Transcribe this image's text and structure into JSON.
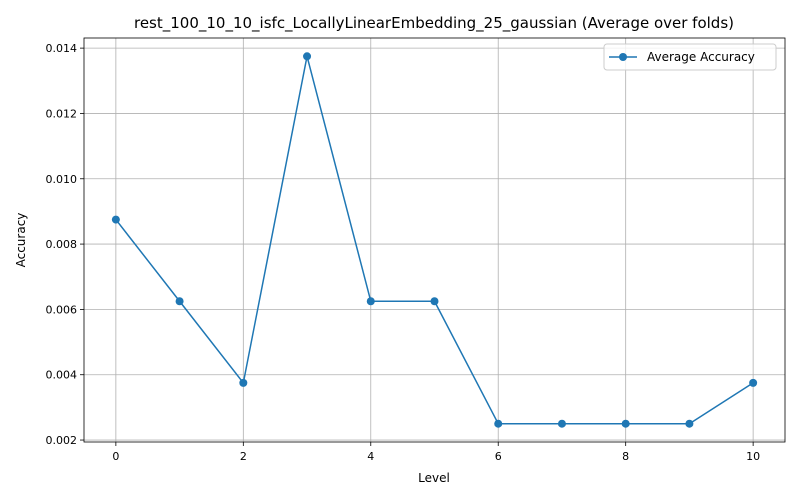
{
  "chart_data": {
    "type": "line",
    "title": "rest_100_10_10_isfc_LocallyLinearEmbedding_25_gaussian (Average over folds)",
    "xlabel": "Level",
    "ylabel": "Accuracy",
    "xlim": [
      -0.5,
      10.5
    ],
    "ylim": [
      0.00194,
      0.01431
    ],
    "xticks": [
      0,
      2,
      4,
      6,
      8,
      10
    ],
    "xtick_labels": [
      "0",
      "2",
      "4",
      "6",
      "8",
      "10"
    ],
    "yticks": [
      0.002,
      0.004,
      0.006,
      0.008,
      0.01,
      0.012,
      0.014
    ],
    "ytick_labels": [
      "0.002",
      "0.004",
      "0.006",
      "0.008",
      "0.010",
      "0.012",
      "0.014"
    ],
    "grid": true,
    "legend_position": "top-right",
    "series": [
      {
        "name": "Average Accuracy",
        "color": "#1f77b4",
        "marker": "circle",
        "x": [
          0,
          1,
          2,
          3,
          4,
          5,
          6,
          7,
          8,
          9,
          10
        ],
        "y": [
          0.00875,
          0.00625,
          0.00375,
          0.01375,
          0.00625,
          0.00625,
          0.0025,
          0.0025,
          0.0025,
          0.0025,
          0.00375
        ]
      }
    ]
  }
}
